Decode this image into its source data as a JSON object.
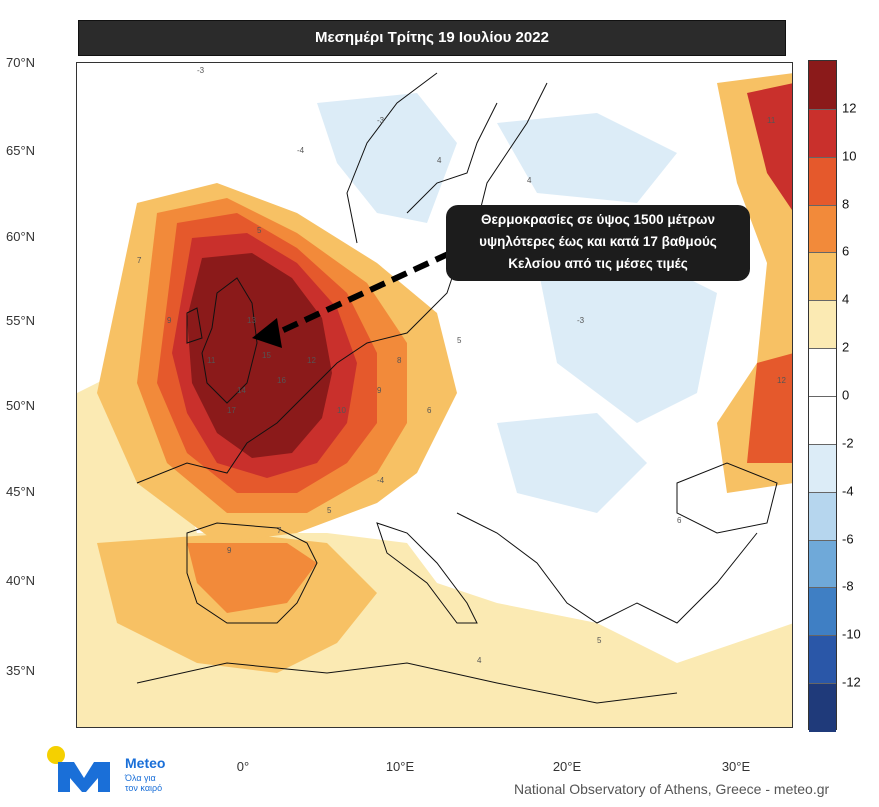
{
  "title": "Μεσημέρι Τρίτης 19 Ιουλίου 2022",
  "callout": {
    "line1": "Θερμοκρασίες σε ύψος 1500 μέτρων",
    "line2": "υψηλότερες έως και κατά 17 βαθμούς",
    "line3": "Κελσίου από τις μέσες τιμές"
  },
  "axes": {
    "lat_labels": [
      "70°N",
      "65°N",
      "60°N",
      "55°N",
      "50°N",
      "45°N",
      "40°N",
      "35°N"
    ],
    "lon_labels": [
      "0°",
      "10°E",
      "20°E",
      "30°E"
    ]
  },
  "legend": {
    "tick_labels": [
      "12",
      "10",
      "8",
      "6",
      "4",
      "2",
      "0",
      "-2",
      "-4",
      "-6",
      "-8",
      "-10",
      "-12"
    ],
    "colors": [
      "#8b1a1a",
      "#c9302c",
      "#e5592c",
      "#f28a3a",
      "#f7c164",
      "#fbeab3",
      "#ffffff",
      "#ffffff",
      "#dcecf7",
      "#b6d6ee",
      "#6fa9d9",
      "#3f7fc4",
      "#2a57a8",
      "#1f3a7a"
    ]
  },
  "contour_values": [
    "-3",
    "-4",
    "-3",
    "4",
    "5",
    "7",
    "9",
    "11",
    "13",
    "14",
    "15",
    "16",
    "17",
    "12",
    "10",
    "9",
    "8",
    "6",
    "5",
    "4",
    "-3",
    "-4",
    "5",
    "7",
    "9",
    "11",
    "12",
    "6",
    "5",
    "4"
  ],
  "logo": {
    "name": "Meteo",
    "slogan_line1": "Όλα για",
    "slogan_line2": "τον καιρό"
  },
  "credit": "National Observatory of Athens, Greece - meteo.gr",
  "colors": {
    "title_bg": "#2b2b2b",
    "callout_bg": "#1c1c1c",
    "logo_yellow": "#f5d000",
    "logo_blue": "#1a6fd8"
  }
}
